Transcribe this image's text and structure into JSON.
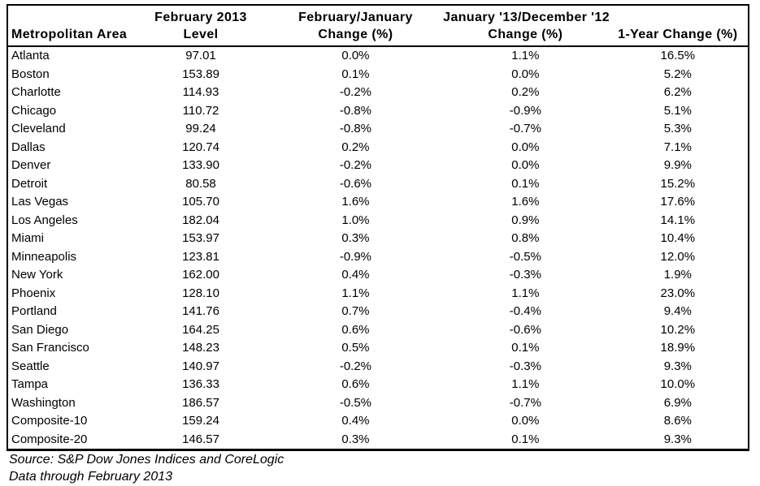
{
  "chart_data": {
    "type": "table",
    "columns": [
      {
        "line1": "",
        "line2": "Metropolitan Area"
      },
      {
        "line1": "February 2013",
        "line2": "Level"
      },
      {
        "line1": "February/January",
        "line2": "Change (%)"
      },
      {
        "line1": "January '13/December '12",
        "line2": "Change (%)"
      },
      {
        "line1": "",
        "line2": "1-Year Change (%)"
      }
    ],
    "rows": [
      [
        "Atlanta",
        "97.01",
        "0.0%",
        "1.1%",
        "16.5%"
      ],
      [
        "Boston",
        "153.89",
        "0.1%",
        "0.0%",
        "5.2%"
      ],
      [
        "Charlotte",
        "114.93",
        "-0.2%",
        "0.2%",
        "6.2%"
      ],
      [
        "Chicago",
        "110.72",
        "-0.8%",
        "-0.9%",
        "5.1%"
      ],
      [
        "Cleveland",
        "99.24",
        "-0.8%",
        "-0.7%",
        "5.3%"
      ],
      [
        "Dallas",
        "120.74",
        "0.2%",
        "0.0%",
        "7.1%"
      ],
      [
        "Denver",
        "133.90",
        "-0.2%",
        "0.0%",
        "9.9%"
      ],
      [
        "Detroit",
        "80.58",
        "-0.6%",
        "0.1%",
        "15.2%"
      ],
      [
        "Las Vegas",
        "105.70",
        "1.6%",
        "1.6%",
        "17.6%"
      ],
      [
        "Los Angeles",
        "182.04",
        "1.0%",
        "0.9%",
        "14.1%"
      ],
      [
        "Miami",
        "153.97",
        "0.3%",
        "0.8%",
        "10.4%"
      ],
      [
        "Minneapolis",
        "123.81",
        "-0.9%",
        "-0.5%",
        "12.0%"
      ],
      [
        "New York",
        "162.00",
        "0.4%",
        "-0.3%",
        "1.9%"
      ],
      [
        "Phoenix",
        "128.10",
        "1.1%",
        "1.1%",
        "23.0%"
      ],
      [
        "Portland",
        "141.76",
        "0.7%",
        "-0.4%",
        "9.4%"
      ],
      [
        "San Diego",
        "164.25",
        "0.6%",
        "-0.6%",
        "10.2%"
      ],
      [
        "San Francisco",
        "148.23",
        "0.5%",
        "0.1%",
        "18.9%"
      ],
      [
        "Seattle",
        "140.97",
        "-0.2%",
        "-0.3%",
        "9.3%"
      ],
      [
        "Tampa",
        "136.33",
        "0.6%",
        "1.1%",
        "10.0%"
      ],
      [
        "Washington",
        "186.57",
        "-0.5%",
        "-0.7%",
        "6.9%"
      ],
      [
        "Composite-10",
        "159.24",
        "0.4%",
        "0.0%",
        "8.6%"
      ],
      [
        "Composite-20",
        "146.57",
        "0.3%",
        "0.1%",
        "9.3%"
      ]
    ]
  },
  "footer": {
    "source": "Source: S&P Dow Jones Indices and CoreLogic",
    "data_through": "Data through February 2013"
  },
  "colors": {
    "border": "#000000",
    "text": "#000000",
    "background": "#ffffff"
  }
}
